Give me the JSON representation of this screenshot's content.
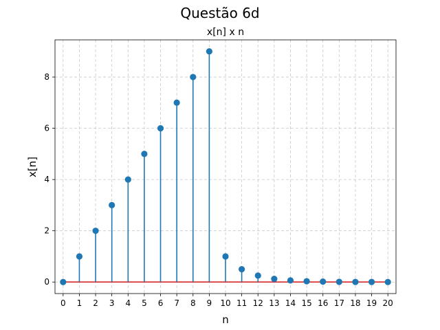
{
  "chart_data": {
    "type": "stem",
    "suptitle": "Questão 6d",
    "title": "x[n] x n",
    "xlabel": "n",
    "ylabel": "x[n]",
    "x": [
      0,
      1,
      2,
      3,
      4,
      5,
      6,
      7,
      8,
      9,
      10,
      11,
      12,
      13,
      14,
      15,
      16,
      17,
      18,
      19,
      20
    ],
    "y": [
      0,
      1,
      2,
      3,
      4,
      5,
      6,
      7,
      8,
      9,
      1,
      0.5,
      0.25,
      0.125,
      0.0625,
      0.03125,
      0.015625,
      0.0078125,
      0.00390625,
      0.001953125,
      0.0009765625
    ],
    "xlim": [
      -0.5,
      20.5
    ],
    "ylim": [
      -0.45,
      9.45
    ],
    "xticks": [
      "0",
      "1",
      "2",
      "3",
      "4",
      "5",
      "6",
      "7",
      "8",
      "9",
      "10",
      "11",
      "12",
      "13",
      "14",
      "15",
      "16",
      "17",
      "18",
      "19",
      "20"
    ],
    "yticks": [
      "0",
      "2",
      "4",
      "6",
      "8"
    ],
    "grid": true,
    "colors": {
      "stem": "#1f77b4",
      "baseline": "#d62728"
    }
  }
}
